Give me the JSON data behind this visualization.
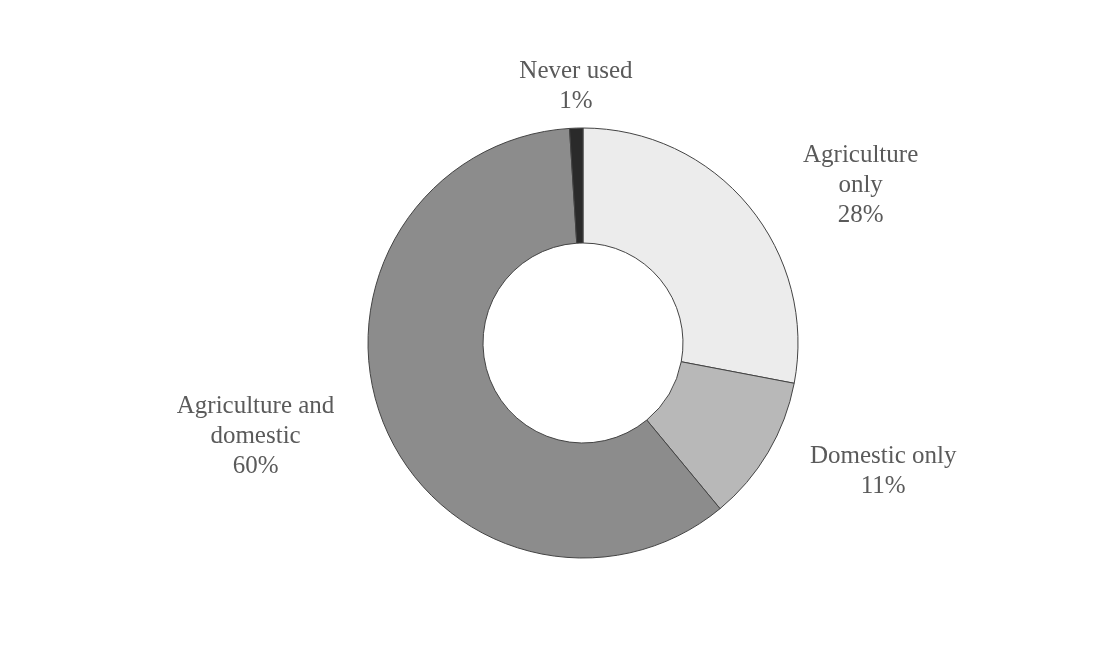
{
  "chart_data": {
    "type": "donut",
    "categories": [
      "Agriculture only",
      "Domestic only",
      "Agriculture and domestic",
      "Never used"
    ],
    "values": [
      28,
      11,
      60,
      1
    ],
    "value_labels": [
      "28%",
      "11%",
      "60%",
      "1%"
    ],
    "colors": [
      "#ececec",
      "#b8b8b8",
      "#8c8c8c",
      "#2a2a2a"
    ],
    "legend": false
  }
}
